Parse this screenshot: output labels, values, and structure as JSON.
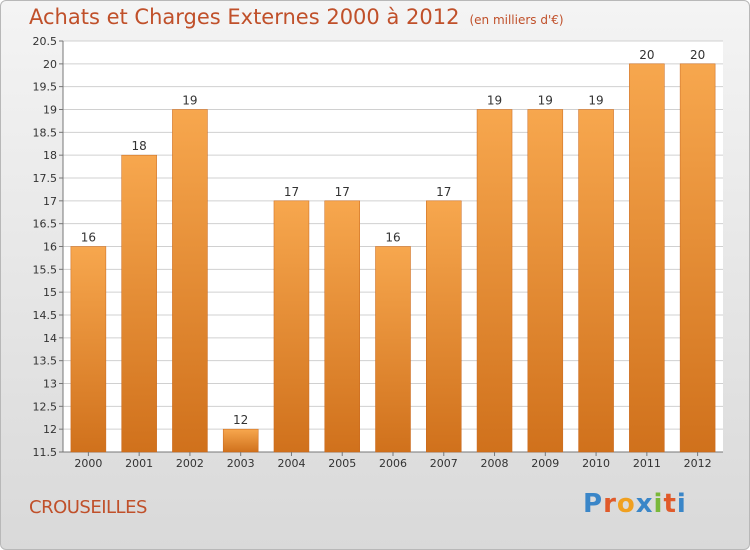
{
  "header": {
    "title": "Achats et Charges Externes 2000 à 2012",
    "unit": "(en milliers d'€)"
  },
  "footer": {
    "commune": "CROUSEILLES",
    "logo": "Proxiti"
  },
  "colors": {
    "bar_top": "#f7a74e",
    "bar_bottom": "#d0711c",
    "title": "#c0502a",
    "grid": "#d0d0d0"
  },
  "chart_data": {
    "type": "bar",
    "title": "Achats et Charges Externes 2000 à 2012",
    "subtitle": "(en milliers d'€)",
    "xlabel": "",
    "ylabel": "",
    "categories": [
      "2000",
      "2001",
      "2002",
      "2003",
      "2004",
      "2005",
      "2006",
      "2007",
      "2008",
      "2009",
      "2010",
      "2011",
      "2012"
    ],
    "values": [
      16,
      18,
      19,
      12,
      17,
      17,
      16,
      17,
      19,
      19,
      19,
      20,
      20
    ],
    "value_labels": [
      "16",
      "18",
      "19",
      "12",
      "17",
      "17",
      "16",
      "17",
      "19",
      "19",
      "19",
      "20",
      "20"
    ],
    "ylim": [
      11.5,
      20.5
    ],
    "yticks": [
      "11.5",
      "12",
      "12.5",
      "13",
      "13.5",
      "14",
      "14.5",
      "15",
      "15.5",
      "16",
      "16.5",
      "17",
      "17.5",
      "18",
      "18.5",
      "19",
      "19.5",
      "20",
      "20.5"
    ],
    "grid": true,
    "legend": "none"
  }
}
